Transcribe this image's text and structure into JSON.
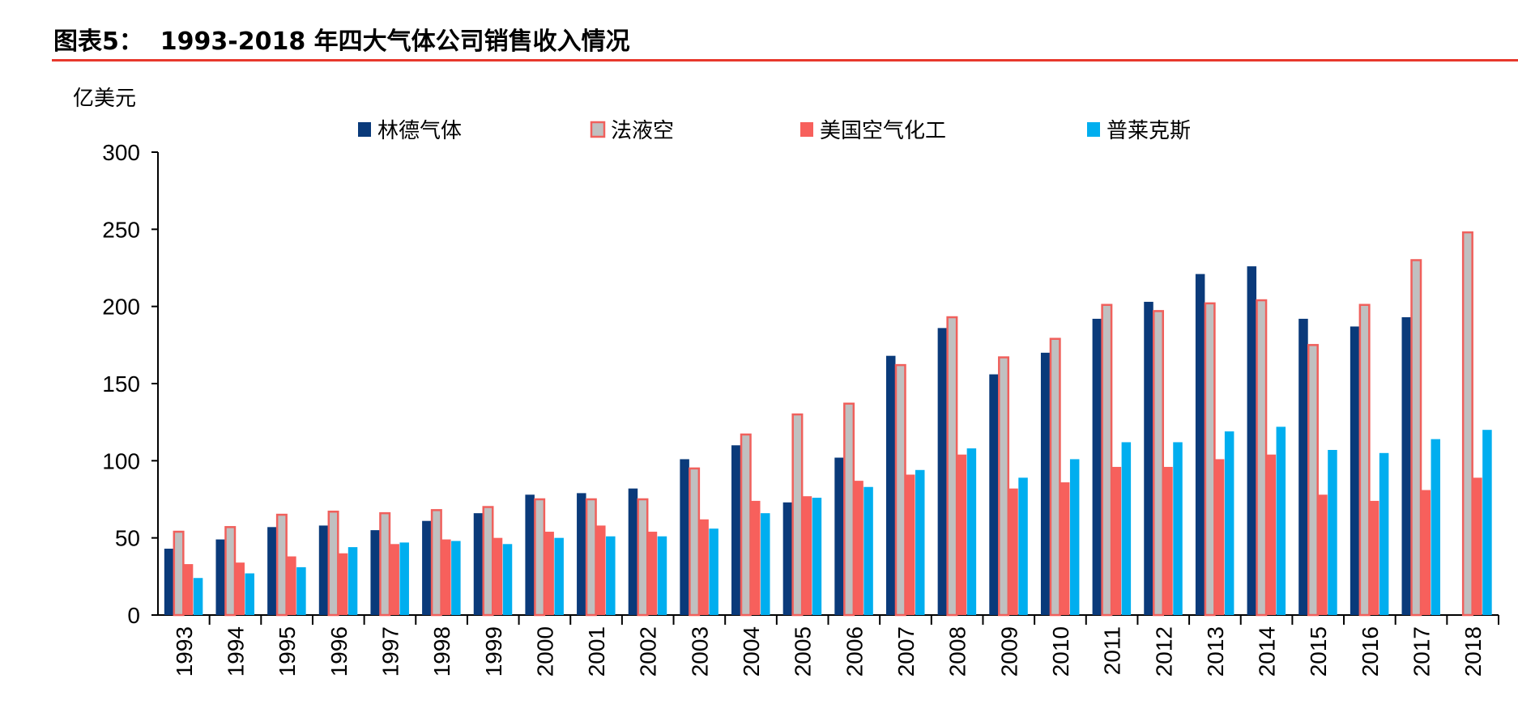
{
  "chart_data": {
    "type": "bar",
    "title": "图表5：  1993-2018 年四大气体公司销售收入情况",
    "ylabel": "亿美元",
    "xlabel": "",
    "ylim": [
      0,
      300
    ],
    "yticks": [
      "0",
      "50",
      "100",
      "150",
      "200",
      "250",
      "300"
    ],
    "grid": false,
    "legend": "top",
    "categories": [
      "1993",
      "1994",
      "1995",
      "1996",
      "1997",
      "1998",
      "1999",
      "2000",
      "2001",
      "2002",
      "2003",
      "2004",
      "2005",
      "2006",
      "2007",
      "2008",
      "2009",
      "2010",
      "2011",
      "2012",
      "2013",
      "2014",
      "2015",
      "2016",
      "2017",
      "2018"
    ],
    "series": [
      {
        "name": "林德气体",
        "color": "#0a3a7a",
        "values": [
          43,
          49,
          57,
          58,
          55,
          61,
          66,
          78,
          79,
          82,
          101,
          110,
          73,
          102,
          168,
          186,
          156,
          170,
          192,
          203,
          221,
          226,
          192,
          187,
          193,
          null
        ]
      },
      {
        "name": "法液空",
        "color": "#c0c0c0",
        "border": "#f0605c",
        "values": [
          54,
          57,
          65,
          67,
          66,
          68,
          70,
          75,
          75,
          75,
          95,
          117,
          130,
          137,
          162,
          193,
          167,
          179,
          201,
          197,
          202,
          204,
          175,
          201,
          230,
          248
        ]
      },
      {
        "name": "美国空气化工",
        "color": "#f7605c",
        "values": [
          33,
          34,
          38,
          40,
          46,
          49,
          50,
          54,
          58,
          54,
          62,
          74,
          77,
          87,
          91,
          104,
          82,
          86,
          96,
          96,
          101,
          104,
          78,
          74,
          81,
          89
        ]
      },
      {
        "name": "普莱克斯",
        "color": "#00aeef",
        "values": [
          24,
          27,
          31,
          44,
          47,
          48,
          46,
          50,
          51,
          51,
          56,
          66,
          76,
          83,
          94,
          108,
          89,
          101,
          112,
          112,
          119,
          122,
          107,
          105,
          114,
          120
        ]
      }
    ]
  }
}
